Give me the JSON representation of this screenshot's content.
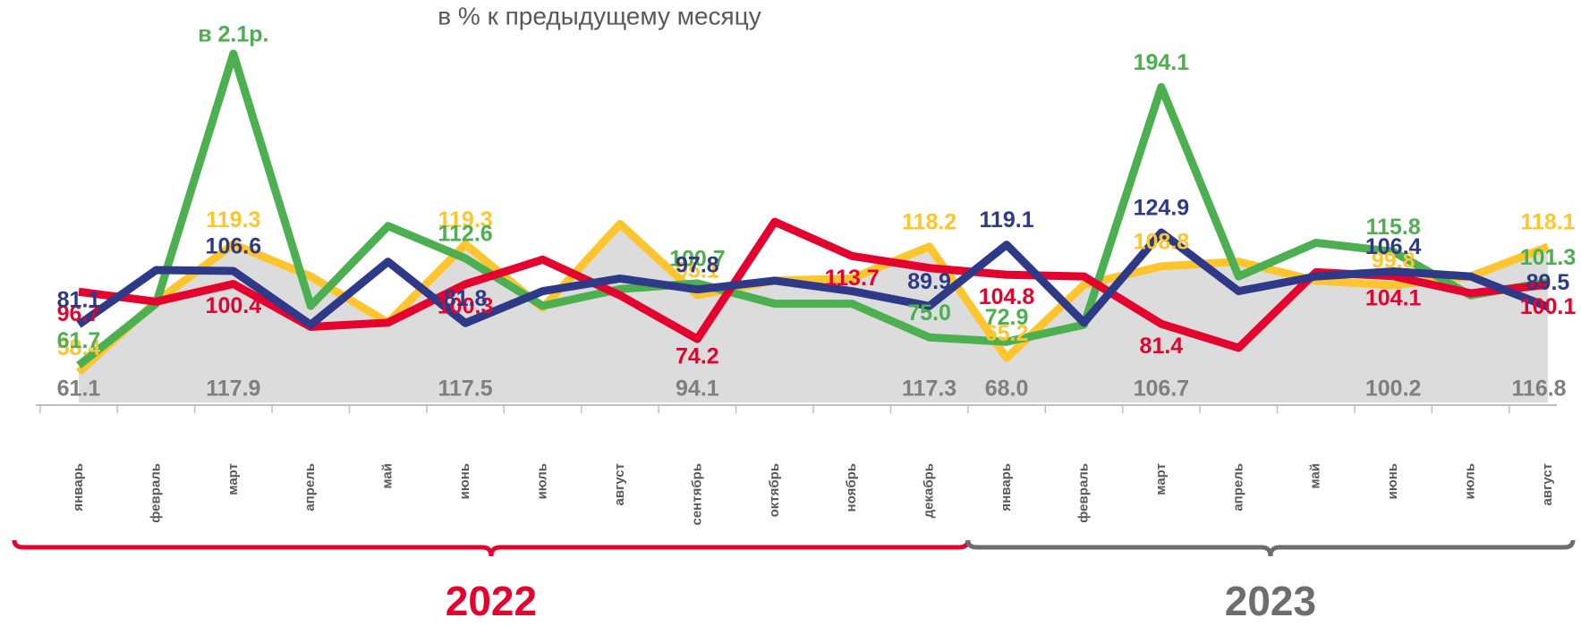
{
  "chart_data": {
    "type": "line",
    "subtitle": "в % к предыдущему месяцу",
    "years": [
      {
        "label": "2022",
        "color": "#e4032e",
        "months": [
          "январь",
          "февраль",
          "март",
          "апрель",
          "май",
          "июнь",
          "июль",
          "август",
          "сентябрь",
          "октябрь",
          "ноябрь",
          "декабрь"
        ]
      },
      {
        "label": "2023",
        "color": "#6d6d6d",
        "months": [
          "январь",
          "февраль",
          "март",
          "апрель",
          "май",
          "июнь",
          "июль",
          "август"
        ]
      }
    ],
    "area": {
      "color": "#dcdcdc",
      "label_color": "#7f7f7f",
      "values": [
        61.1,
        92,
        117.9,
        104,
        83,
        117.5,
        90,
        128,
        94.1,
        101,
        103,
        117.3,
        68.0,
        100,
        106.7,
        110,
        102,
        100.2,
        104,
        116.8
      ],
      "value_labels": [
        "61.1",
        null,
        "117.9",
        null,
        null,
        "117.5",
        null,
        null,
        "94.1",
        null,
        null,
        "117.3",
        "68.0",
        null,
        "106.7",
        null,
        null,
        "100.2",
        null,
        "116.8"
      ]
    },
    "series": [
      {
        "color": "#ffc52f",
        "values": [
          58.4,
          92,
          119.3,
          104,
          82,
          119.3,
          89,
          129,
          95.1,
          102,
          103,
          118.2,
          65.2,
          100,
          108.8,
          111,
          102,
          99.8,
          104,
          118.1
        ],
        "value_labels": [
          "58.4",
          null,
          "119.3",
          null,
          null,
          "119.3",
          null,
          null,
          "95.1",
          null,
          null,
          "118.2",
          "65.2",
          null,
          "108.8",
          null,
          null,
          "99.8",
          null,
          "118.1"
        ]
      },
      {
        "color": "#4caf50",
        "values": [
          61.7,
          91,
          210,
          90,
          128,
          112.6,
          90,
          98,
          100.7,
          91,
          91,
          75.0,
          72.9,
          81,
          194.1,
          104,
          120,
          115.8,
          95,
          101.3
        ],
        "value_labels": [
          "61.7",
          null,
          "в 2.1р.",
          null,
          null,
          "112.6",
          null,
          null,
          "100.7",
          null,
          null,
          "75.0",
          "72.9",
          null,
          "194.1",
          null,
          null,
          "115.8",
          null,
          "101.3"
        ]
      },
      {
        "color": "#e4032e",
        "values": [
          96.7,
          92,
          100.4,
          80,
          82,
          100.3,
          112,
          95,
          74.2,
          130,
          113.7,
          108,
          104.8,
          104,
          81.4,
          70,
          106,
          104.1,
          96,
          100.1
        ],
        "value_labels": [
          "96.7",
          null,
          "100.4",
          null,
          null,
          "100.3",
          null,
          null,
          "74.2",
          null,
          "113.7",
          null,
          "104.8",
          null,
          "81.4",
          null,
          null,
          "104.1",
          null,
          "100.1"
        ]
      },
      {
        "color": "#2e3a87",
        "values": [
          81.1,
          107,
          106.6,
          81,
          111,
          81.8,
          97,
          103,
          97.8,
          102,
          97,
          89.9,
          119.1,
          82,
          124.9,
          97,
          104,
          106.4,
          104,
          89.5
        ],
        "value_labels": [
          "81.1",
          null,
          "106.6",
          null,
          null,
          "81.8",
          null,
          null,
          "97.8",
          null,
          null,
          "89.9",
          "119.1",
          null,
          "124.9",
          null,
          null,
          "106.4",
          null,
          "89.5"
        ]
      }
    ]
  }
}
